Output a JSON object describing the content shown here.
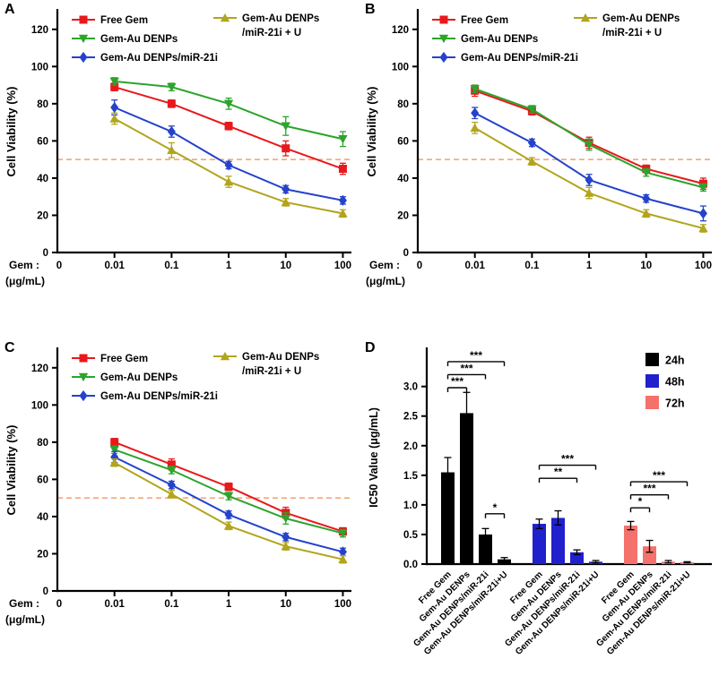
{
  "panels": [
    {
      "label": "A"
    },
    {
      "label": "B"
    },
    {
      "label": "C"
    },
    {
      "label": "D"
    }
  ],
  "chart_data": [
    {
      "panel": "A",
      "type": "line",
      "x": [
        0.01,
        0.1,
        1,
        10,
        100
      ],
      "x_labels": [
        "0.01",
        "0.1",
        "1",
        "10",
        "100"
      ],
      "x_origin_label": "0",
      "xlabel_line1": "Gem :",
      "xlabel_line2": "(μg/mL)",
      "ylabel": "Cell Viability (%)",
      "yticks": [
        0,
        20,
        40,
        60,
        80,
        100,
        120
      ],
      "ymax": 130,
      "reference_line_y": 50,
      "reference_color": "#F2A878",
      "series": [
        {
          "name": "Free Gem",
          "color": "#E8191C",
          "marker": "square",
          "values": [
            89,
            80,
            68,
            56,
            45
          ],
          "errors": [
            2,
            2,
            2,
            4,
            3
          ]
        },
        {
          "name": "Gem-Au DENPs",
          "color": "#2CA42C",
          "marker": "triangle-down",
          "values": [
            92,
            89,
            80,
            68,
            61
          ],
          "errors": [
            2,
            2,
            3,
            5,
            4
          ]
        },
        {
          "name": "Gem-Au DENPs/miR-21i",
          "color": "#2442CC",
          "marker": "diamond",
          "values": [
            78,
            65,
            47,
            34,
            28
          ],
          "errors": [
            4,
            3,
            2,
            2,
            2
          ]
        },
        {
          "name": "Gem-Au DENPs/miR-21i + U",
          "name_lines": [
            "Gem-Au DENPs",
            "/miR-21i + U"
          ],
          "color": "#B2A51D",
          "marker": "triangle-up",
          "values": [
            72,
            55,
            38,
            27,
            21
          ],
          "errors": [
            3,
            4,
            3,
            2,
            2
          ]
        }
      ]
    },
    {
      "panel": "B",
      "type": "line",
      "x": [
        0.01,
        0.1,
        1,
        10,
        100
      ],
      "x_labels": [
        "0.01",
        "0.1",
        "1",
        "10",
        "100"
      ],
      "x_origin_label": "0",
      "xlabel_line1": "Gem :",
      "xlabel_line2": "(μg/mL)",
      "ylabel": "Cell Viability (%)",
      "yticks": [
        0,
        20,
        40,
        60,
        80,
        100,
        120
      ],
      "ymax": 130,
      "reference_line_y": 50,
      "reference_color": "#F2A878",
      "series": [
        {
          "name": "Free Gem",
          "color": "#E8191C",
          "marker": "square",
          "values": [
            87,
            76,
            59,
            45,
            37
          ],
          "errors": [
            3,
            2,
            3,
            2,
            3
          ]
        },
        {
          "name": "Gem-Au DENPs",
          "color": "#2CA42C",
          "marker": "triangle-down",
          "values": [
            88,
            77,
            58,
            43,
            35
          ],
          "errors": [
            2,
            2,
            3,
            2,
            2
          ]
        },
        {
          "name": "Gem-Au DENPs/miR-21i",
          "color": "#2442CC",
          "marker": "diamond",
          "values": [
            75,
            59,
            39,
            29,
            21
          ],
          "errors": [
            3,
            2,
            3,
            2,
            4
          ]
        },
        {
          "name": "Gem-Au DENPs/miR-21i + U",
          "name_lines": [
            "Gem-Au DENPs",
            "/miR-21i + U"
          ],
          "color": "#B2A51D",
          "marker": "triangle-up",
          "values": [
            67,
            49,
            32,
            21,
            13
          ],
          "errors": [
            3,
            2,
            3,
            2,
            2
          ]
        }
      ]
    },
    {
      "panel": "C",
      "type": "line",
      "x": [
        0.01,
        0.1,
        1,
        10,
        100
      ],
      "x_labels": [
        "0.01",
        "0.1",
        "1",
        "10",
        "100"
      ],
      "x_origin_label": "0",
      "xlabel_line1": "Gem :",
      "xlabel_line2": "(μg/mL)",
      "ylabel": "Cell Viability (%)",
      "yticks": [
        0,
        20,
        40,
        60,
        80,
        100,
        120
      ],
      "ymax": 130,
      "reference_line_y": 50,
      "reference_color": "#F2A878",
      "series": [
        {
          "name": "Free Gem",
          "color": "#E8191C",
          "marker": "square",
          "values": [
            80,
            68,
            56,
            42,
            32
          ],
          "errors": [
            2,
            3,
            2,
            3,
            2
          ]
        },
        {
          "name": "Gem-Au DENPs",
          "color": "#2CA42C",
          "marker": "triangle-down",
          "values": [
            76,
            65,
            51,
            39,
            31
          ],
          "errors": [
            2,
            2,
            2,
            3,
            2
          ]
        },
        {
          "name": "Gem-Au DENPs/miR-21i",
          "color": "#2442CC",
          "marker": "diamond",
          "values": [
            72,
            57,
            41,
            29,
            21
          ],
          "errors": [
            3,
            2,
            2,
            2,
            2
          ]
        },
        {
          "name": "Gem-Au DENPs/miR-21i + U",
          "name_lines": [
            "Gem-Au DENPs",
            "/miR-21i + U"
          ],
          "color": "#B2A51D",
          "marker": "triangle-up",
          "values": [
            69,
            52,
            35,
            24,
            17
          ],
          "errors": [
            2,
            2,
            2,
            2,
            2
          ]
        }
      ]
    },
    {
      "panel": "D",
      "type": "bar",
      "ylabel": "IC50 Value (μg/mL)",
      "yticks": [
        0.0,
        0.5,
        1.0,
        1.5,
        2.0,
        2.5,
        3.0
      ],
      "ymax": 3.6,
      "categories": [
        "Free Gem",
        "Gem-Au DENPs",
        "Gem-Au DENPs/miR-21i",
        "Gem-Au DENPs/miR-21i+U"
      ],
      "series": [
        {
          "name": "24h",
          "color": "#000000",
          "values": [
            1.55,
            2.55,
            0.5,
            0.08
          ],
          "errors": [
            0.25,
            0.35,
            0.1,
            0.03
          ]
        },
        {
          "name": "48h",
          "color": "#2020CC",
          "values": [
            0.68,
            0.78,
            0.2,
            0.04
          ],
          "errors": [
            0.08,
            0.12,
            0.04,
            0.02
          ]
        },
        {
          "name": "72h",
          "color": "#F4716C",
          "values": [
            0.65,
            0.3,
            0.04,
            0.03
          ],
          "errors": [
            0.07,
            0.1,
            0.02,
            0.01
          ]
        }
      ],
      "significance": [
        {
          "group": 0,
          "from": 0,
          "to": 1,
          "label": "***",
          "y": 2.98
        },
        {
          "group": 0,
          "from": 0,
          "to": 2,
          "label": "***",
          "y": 3.2
        },
        {
          "group": 0,
          "from": 0,
          "to": 3,
          "label": "***",
          "y": 3.42
        },
        {
          "group": 0,
          "from": 2,
          "to": 3,
          "label": "*",
          "y": 0.85
        },
        {
          "group": 1,
          "from": 0,
          "to": 2,
          "label": "**",
          "y": 1.45
        },
        {
          "group": 1,
          "from": 0,
          "to": 3,
          "label": "***",
          "y": 1.67
        },
        {
          "group": 2,
          "from": 0,
          "to": 1,
          "label": "*",
          "y": 0.95
        },
        {
          "group": 2,
          "from": 0,
          "to": 2,
          "label": "***",
          "y": 1.17
        },
        {
          "group": 2,
          "from": 0,
          "to": 3,
          "label": "***",
          "y": 1.39
        }
      ]
    }
  ]
}
